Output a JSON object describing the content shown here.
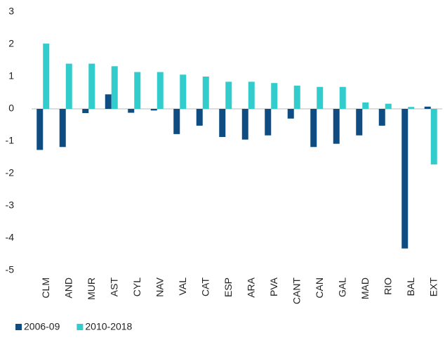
{
  "chart_data": {
    "type": "bar",
    "categories": [
      "CLM",
      "AND",
      "MUR",
      "AST",
      "CYL",
      "NAV",
      "VAL",
      "CAT",
      "ESP",
      "ARA",
      "PVA",
      "CANT",
      "CAN",
      "GAL",
      "MAD",
      "RIO",
      "BAL",
      "EXT"
    ],
    "series": [
      {
        "name": "2006-09",
        "color": "#0f4c81",
        "values": [
          -1.27,
          -1.18,
          -0.13,
          0.45,
          -0.12,
          -0.05,
          -0.78,
          -0.52,
          -0.87,
          -0.95,
          -0.82,
          -0.3,
          -1.18,
          -1.08,
          -0.82,
          -0.52,
          -4.32,
          0.07
        ]
      },
      {
        "name": "2010-2018",
        "color": "#33cccc",
        "values": [
          2.02,
          1.4,
          1.4,
          1.32,
          1.14,
          1.14,
          1.06,
          1.0,
          0.84,
          0.84,
          0.8,
          0.72,
          0.68,
          0.68,
          0.2,
          0.16,
          0.06,
          -1.72
        ]
      }
    ],
    "ylim": [
      -5,
      3
    ],
    "yticks": [
      -5,
      -4,
      -3,
      -2,
      -1,
      0,
      1,
      2,
      3
    ],
    "grid": false,
    "legend": "bottom"
  }
}
